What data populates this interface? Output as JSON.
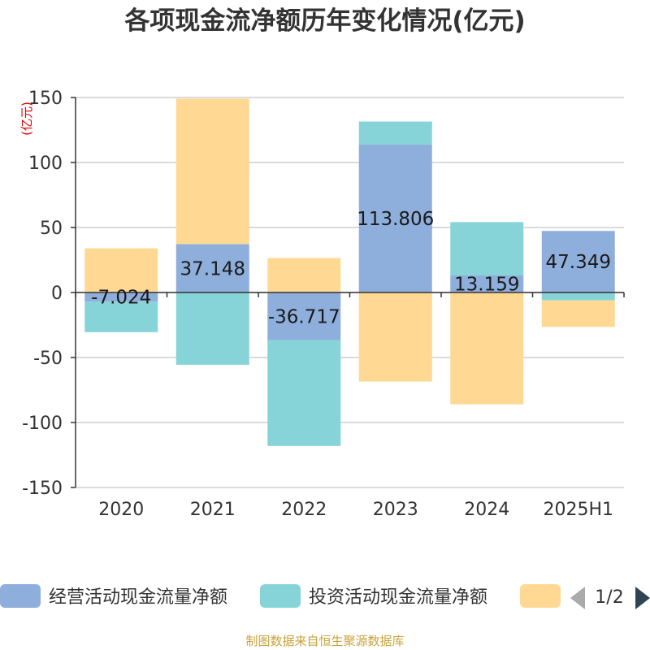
{
  "chart_data": {
    "type": "bar",
    "stacked": true,
    "title": "各项现金流净额历年变化情况(亿元)",
    "unit_label": "(亿元)",
    "categories": [
      "2020",
      "2021",
      "2022",
      "2023",
      "2024",
      "2025H1"
    ],
    "ylim": [
      -150,
      150
    ],
    "yticks": [
      150,
      100,
      50,
      0,
      -50,
      -100,
      -150
    ],
    "grid": true,
    "series": [
      {
        "name": "经营活动现金流量净额",
        "color": "#8eaedb",
        "values": [
          -7.024,
          37.148,
          -36.717,
          113.806,
          13.159,
          47.349
        ],
        "labels": [
          "-7.024",
          "37.148",
          "-36.717",
          "113.806",
          "13.159",
          "47.349"
        ]
      },
      {
        "name": "投资活动现金流量净额",
        "color": "#86d4d8",
        "values": [
          -23.5,
          -55.6,
          -81.3,
          17.7,
          41.0,
          -6.0
        ]
      },
      {
        "name": "",
        "color": "#ffd994",
        "values": [
          34.0,
          112.0,
          26.5,
          -68.5,
          -86.0,
          -20.5
        ]
      }
    ],
    "legend": {
      "position": "bottom",
      "page": "1/2"
    }
  },
  "source": "制图数据来自恒生聚源数据库"
}
